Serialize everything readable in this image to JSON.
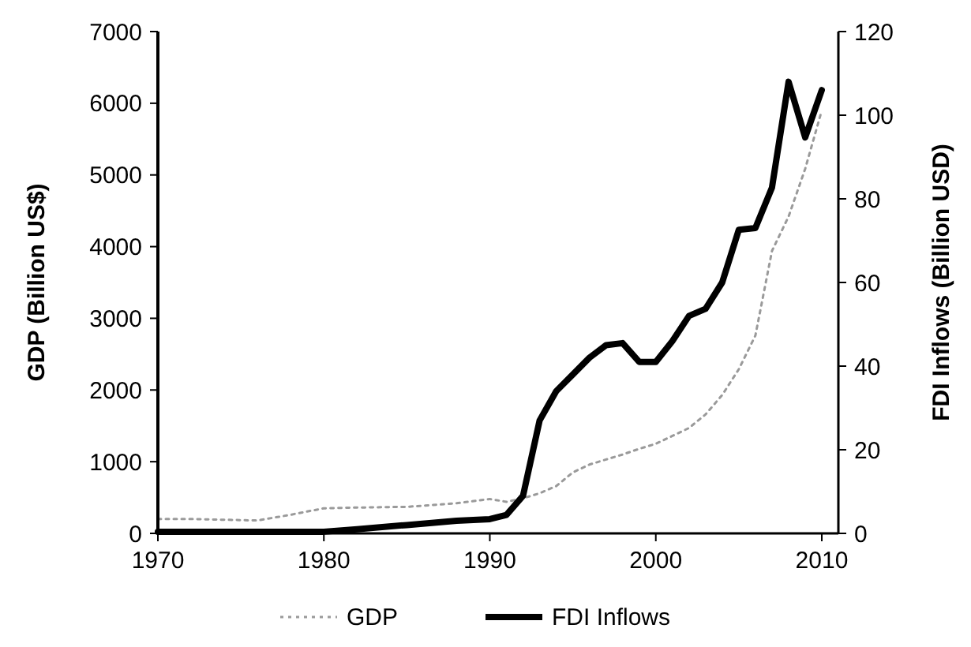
{
  "chart_data": {
    "type": "line",
    "ylabel": "GDP (Billion US$)",
    "y2label": "FDI Inflows (Billion USD)",
    "x": [
      1970,
      1972,
      1974,
      1976,
      1978,
      1980,
      1982,
      1985,
      1988,
      1990,
      1991,
      1992,
      1993,
      1994,
      1995,
      1996,
      1997,
      1998,
      1999,
      2000,
      2001,
      2002,
      2003,
      2004,
      2005,
      2006,
      2007,
      2008,
      2009,
      2010
    ],
    "series": [
      {
        "name": "GDP",
        "color": "#9a9a9a",
        "line_style": "dotted",
        "values": [
          200,
          200,
          190,
          180,
          260,
          350,
          360,
          370,
          420,
          480,
          440,
          490,
          560,
          660,
          850,
          960,
          1030,
          1100,
          1180,
          1250,
          1360,
          1470,
          1660,
          1930,
          2290,
          2760,
          3940,
          4420,
          5085,
          5900
        ]
      },
      {
        "name": "FDI Inflows",
        "color": "#000000",
        "line_style": "solid",
        "axis": "y2",
        "values": [
          0.4,
          0.4,
          0.4,
          0.4,
          0.4,
          0.4,
          1,
          2,
          3,
          3.4,
          4.4,
          9,
          27,
          34,
          38,
          42,
          45,
          45.5,
          41,
          41,
          46,
          52,
          53.7,
          60,
          72.6,
          73,
          82.7,
          108,
          94.7,
          106
        ]
      }
    ],
    "xlim": [
      1970,
      2011
    ],
    "xticks": [
      1970,
      1980,
      1990,
      2000,
      2010
    ],
    "ylim": [
      0,
      7000
    ],
    "yticks": [
      0,
      1000,
      2000,
      3000,
      4000,
      5000,
      6000,
      7000
    ],
    "y2lim": [
      0,
      120
    ],
    "y2ticks": [
      0,
      20,
      40,
      60,
      80,
      100,
      120
    ],
    "legend": "bottom",
    "grid": false
  }
}
